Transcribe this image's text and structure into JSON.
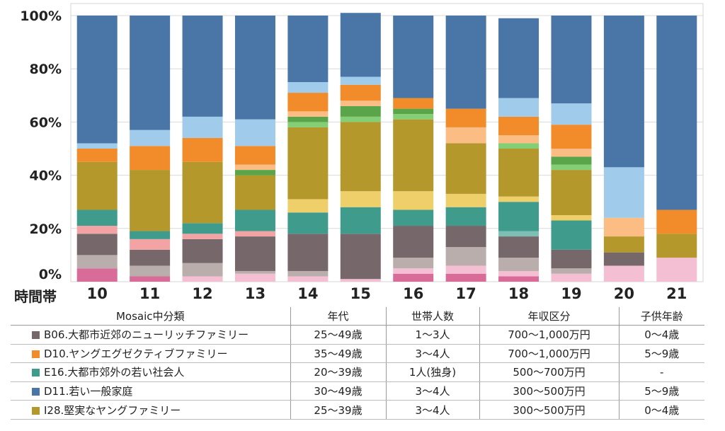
{
  "chart_data": {
    "type": "bar",
    "stacked": true,
    "xlabel": "時間帯",
    "ylabel": "",
    "ylim": [
      0,
      100
    ],
    "y_ticks": [
      "0%",
      "20%",
      "40%",
      "60%",
      "80%",
      "100%"
    ],
    "categories": [
      "10",
      "11",
      "12",
      "13",
      "14",
      "15",
      "16",
      "17",
      "18",
      "19",
      "20",
      "21"
    ],
    "series": [
      {
        "color": "#d96b99",
        "values": [
          5,
          2,
          0,
          0,
          0,
          0,
          3,
          3,
          2,
          0,
          0,
          0
        ]
      },
      {
        "color": "#f5bfd3",
        "values": [
          0,
          0,
          2,
          3,
          2,
          1,
          2,
          3,
          2,
          3,
          6,
          9
        ]
      },
      {
        "color": "#b9aeac",
        "values": [
          5,
          4,
          5,
          1,
          2,
          0,
          4,
          7,
          5,
          2,
          0,
          0
        ]
      },
      {
        "color": "#76686a",
        "values": [
          8,
          6,
          9,
          13,
          14,
          17,
          12,
          8,
          8,
          7,
          5,
          0
        ]
      },
      {
        "color": "#f4a3a5",
        "values": [
          3,
          4,
          2,
          2,
          0,
          0,
          0,
          0,
          0,
          0,
          0,
          0
        ]
      },
      {
        "color": "#7ebfb5",
        "values": [
          0,
          0,
          0,
          0,
          0,
          0,
          0,
          0,
          2,
          0,
          0,
          0
        ]
      },
      {
        "color": "#3f9c8c",
        "values": [
          6,
          3,
          4,
          8,
          8,
          10,
          6,
          7,
          11,
          11,
          0,
          0
        ]
      },
      {
        "color": "#efcf6a",
        "values": [
          0,
          0,
          0,
          0,
          5,
          6,
          7,
          5,
          2,
          2,
          0,
          0
        ]
      },
      {
        "color": "#b4982c",
        "values": [
          18,
          23,
          23,
          13,
          27,
          26,
          27,
          19,
          18,
          17,
          6,
          9
        ]
      },
      {
        "color": "#84cf75",
        "values": [
          0,
          0,
          0,
          0,
          2,
          2,
          2,
          0,
          2,
          2,
          0,
          0
        ]
      },
      {
        "color": "#5aa54a",
        "values": [
          0,
          0,
          0,
          2,
          2,
          4,
          2,
          0,
          0,
          3,
          0,
          0
        ]
      },
      {
        "color": "#fbbd84",
        "values": [
          0,
          0,
          0,
          2,
          2,
          2,
          0,
          6,
          3,
          3,
          7,
          0
        ]
      },
      {
        "color": "#f28c2a",
        "values": [
          5,
          9,
          9,
          7,
          7,
          6,
          4,
          7,
          7,
          9,
          0,
          9
        ]
      },
      {
        "color": "#a0cbea",
        "values": [
          2,
          6,
          8,
          10,
          4,
          3,
          0,
          0,
          7,
          8,
          19,
          0
        ]
      },
      {
        "color": "#4a76a7",
        "values": [
          48,
          43,
          38,
          39,
          25,
          24,
          31,
          35,
          30,
          33,
          57,
          73
        ]
      }
    ]
  },
  "table": {
    "headers": [
      "Mosaic中分類",
      "年代",
      "世帯人数",
      "年収区分",
      "子供年齢"
    ],
    "rows": [
      {
        "color": "#76686a",
        "segment": "B06.大都市近郊のニューリッチファミリー",
        "age": "25～49歳",
        "household": "1～3人",
        "income": "700～1,000万円",
        "child_age": "0～4歳"
      },
      {
        "color": "#f28c2a",
        "segment": "D10.ヤングエグゼクティブファミリー",
        "age": "35～49歳",
        "household": "3～4人",
        "income": "700～1,000万円",
        "child_age": "5～9歳"
      },
      {
        "color": "#3f9c8c",
        "segment": "E16.大都市郊外の若い社会人",
        "age": "20～39歳",
        "household": "1人(独身)",
        "income": "500～700万円",
        "child_age": "-"
      },
      {
        "color": "#4a76a7",
        "segment": "D11.若い一般家庭",
        "age": "30～49歳",
        "household": "3～4人",
        "income": "300～500万円",
        "child_age": "5～9歳"
      },
      {
        "color": "#b4982c",
        "segment": "I28.堅実なヤングファミリー",
        "age": "25～39歳",
        "household": "3～4人",
        "income": "300～500万円",
        "child_age": "0～4歳"
      }
    ]
  }
}
